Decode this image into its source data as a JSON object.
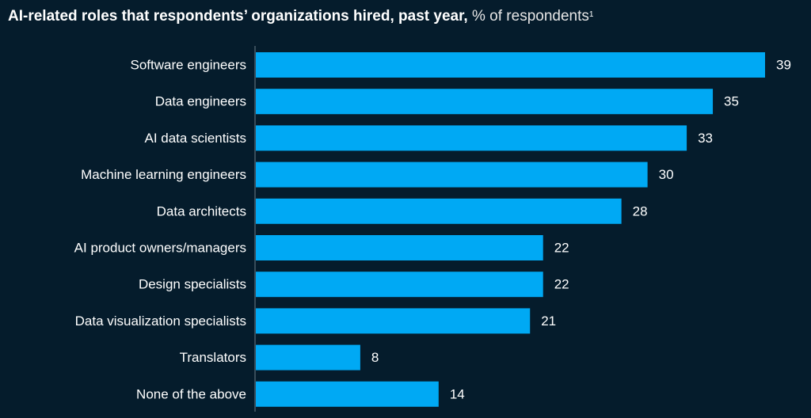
{
  "chart_data": {
    "type": "bar",
    "orientation": "horizontal",
    "title": "AI-related roles that respondents’ organizations hired, past year,",
    "subtitle": "% of respondents",
    "footnote_marker": "1",
    "categories": [
      "Software engineers",
      "Data engineers",
      "AI data scientists",
      "Machine learning engineers",
      "Data architects",
      "AI product owners/managers",
      "Design specialists",
      "Data visualization specialists",
      "Translators",
      "None of the above"
    ],
    "values": [
      39,
      35,
      33,
      30,
      28,
      22,
      22,
      21,
      8,
      14
    ],
    "xlim": [
      0,
      39
    ],
    "grid": false,
    "bar_color": "#00a9f4",
    "background_color": "#051c2c"
  }
}
